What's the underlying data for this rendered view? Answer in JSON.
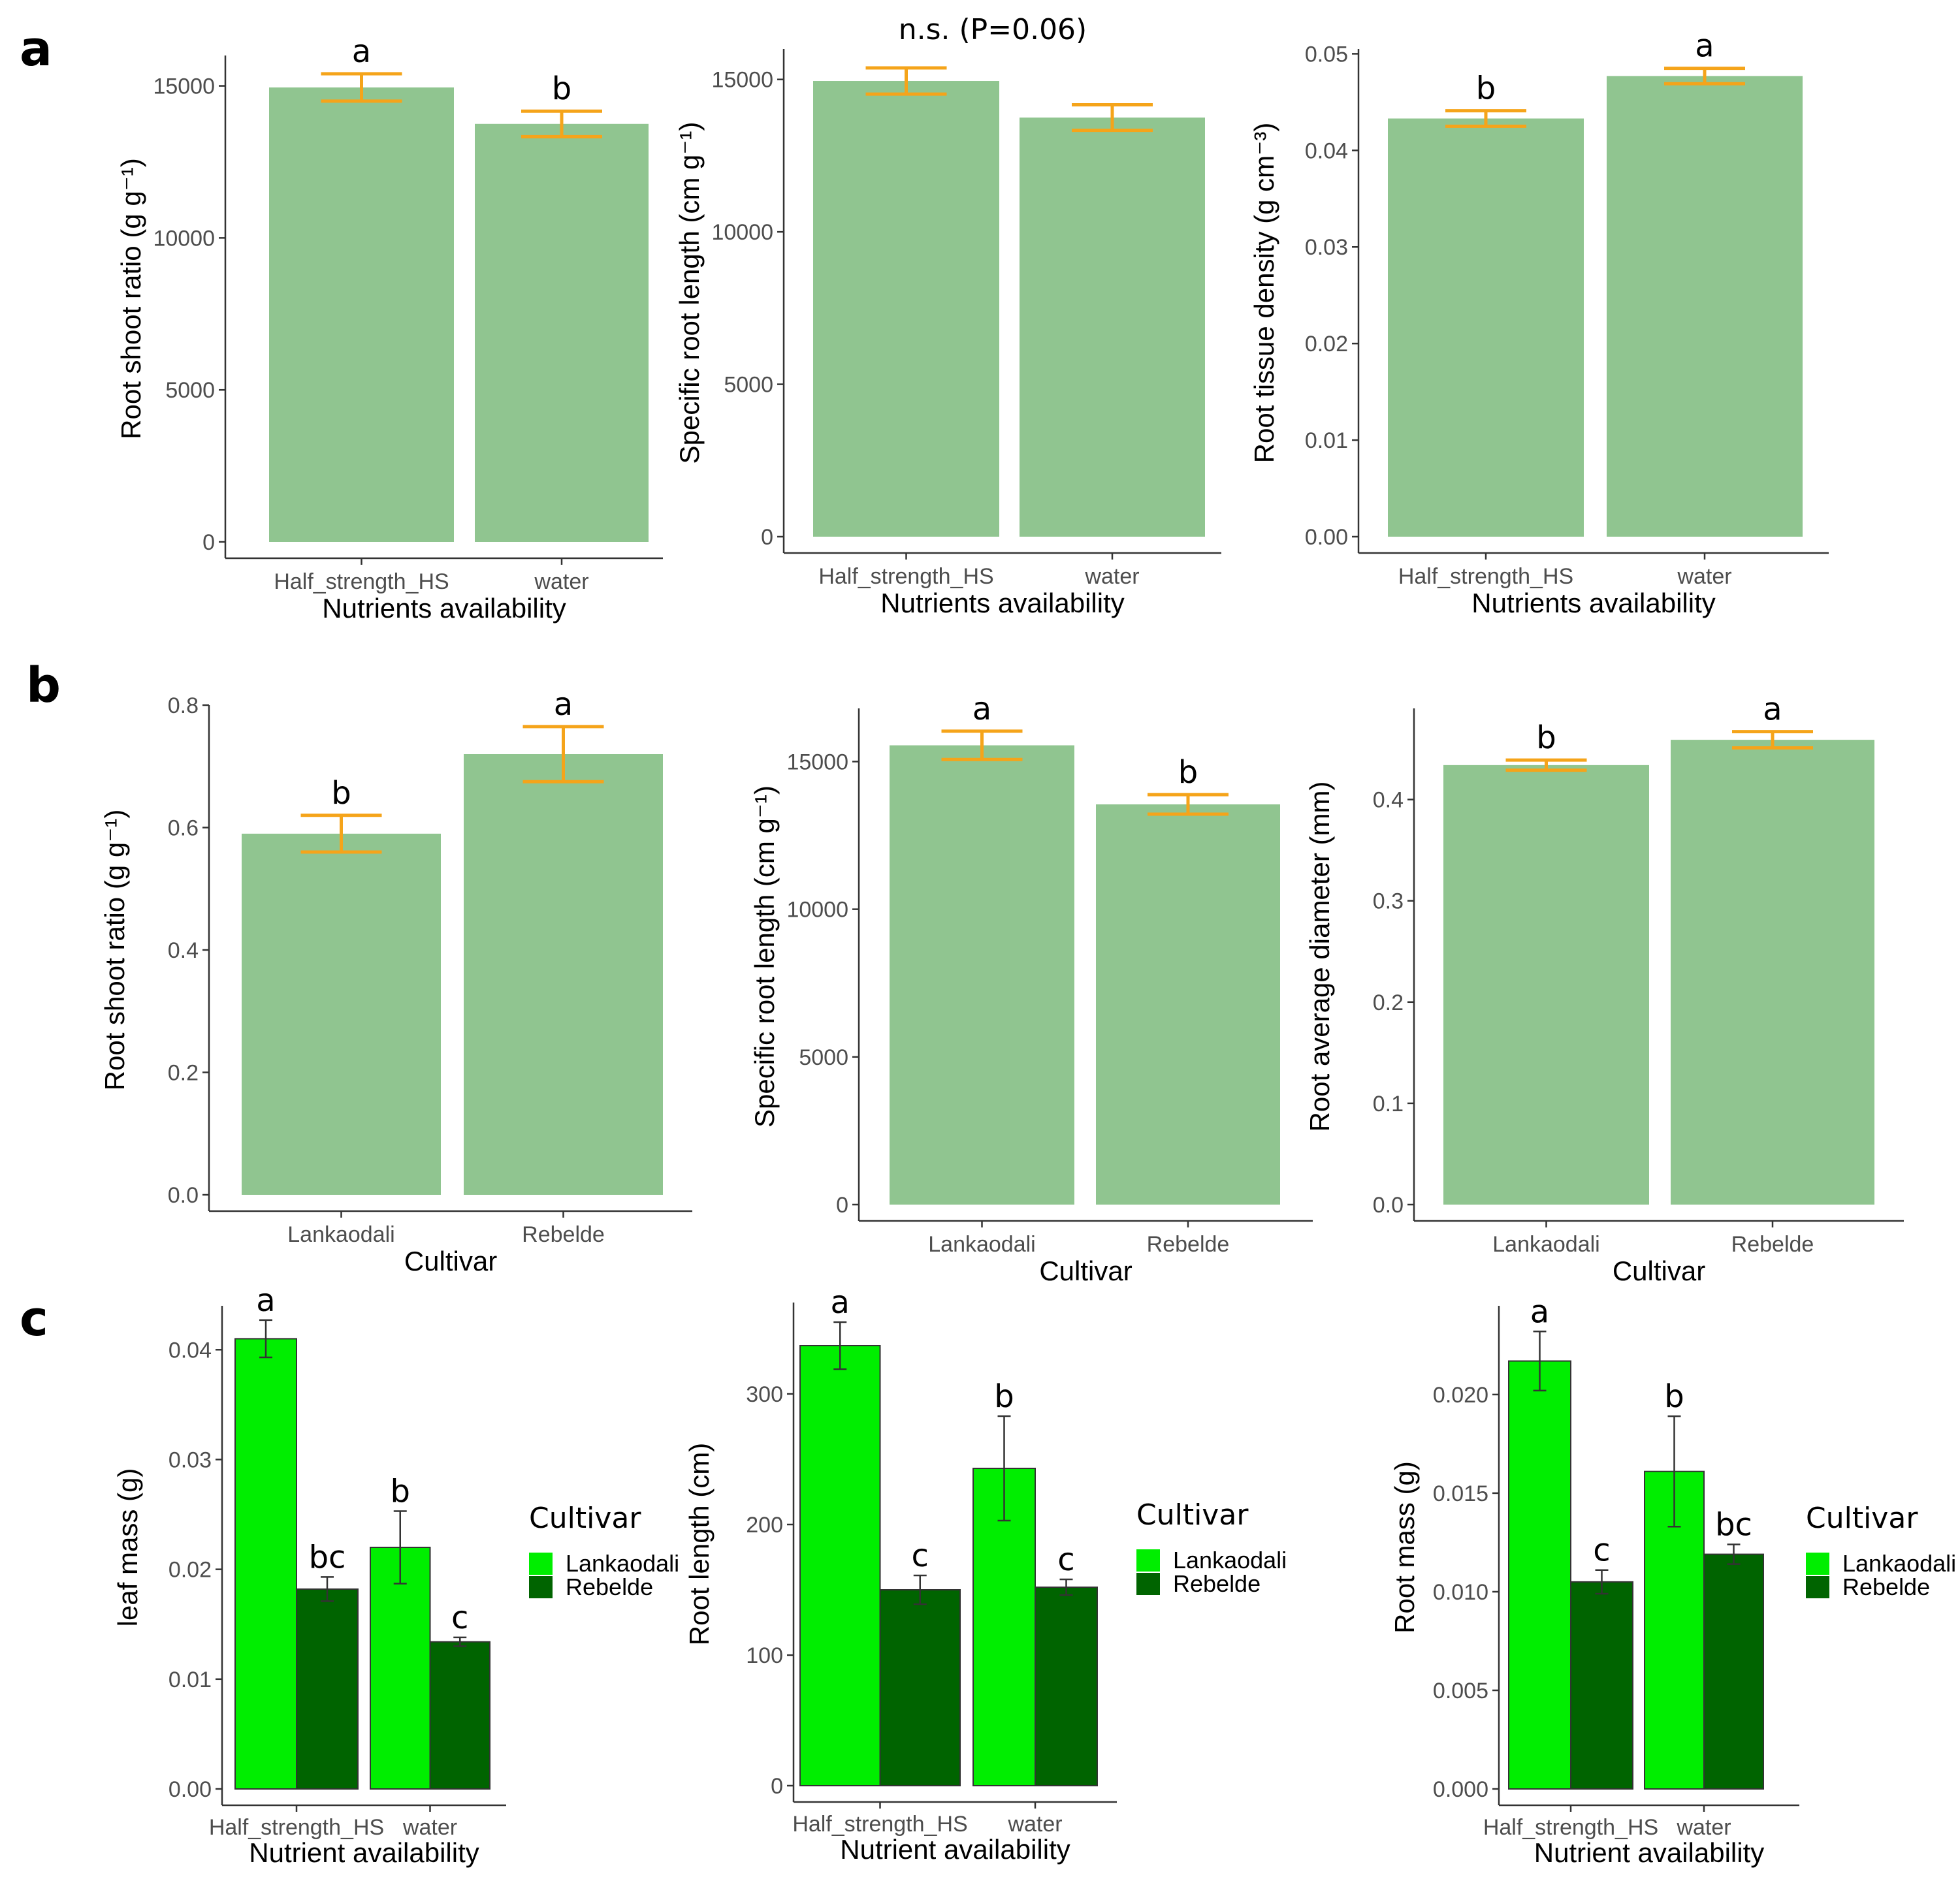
{
  "panel_letters": [
    "a",
    "b",
    "c"
  ],
  "chart_data": [
    {
      "id": "a1",
      "type": "bar",
      "categories": [
        "Half_strength_HS",
        "water"
      ],
      "values": [
        14950,
        13750
      ],
      "errors": [
        450,
        420
      ],
      "letters": [
        "a",
        "b"
      ],
      "ylabel": "Root shoot ratio (g g⁻¹)",
      "xlabel": "Nutrients availability",
      "ylim": [
        0,
        16000
      ],
      "yticks": [
        0,
        5000,
        10000,
        15000
      ],
      "tick_labels": [
        "0",
        "5000",
        "10000",
        "15000"
      ],
      "bar_color": "#90c590",
      "error_color": "#f5a41a"
    },
    {
      "id": "a2",
      "type": "bar",
      "categories": [
        "Half_strength_HS",
        "water"
      ],
      "values": [
        14950,
        13750
      ],
      "errors": [
        430,
        420
      ],
      "letters": [
        "",
        ""
      ],
      "note": "n.s.  (P=0.06)",
      "ylabel": "Specific root length (cm g⁻¹)",
      "xlabel": "Nutrients availability",
      "ylim": [
        0,
        16000
      ],
      "yticks": [
        0,
        5000,
        10000,
        15000
      ],
      "tick_labels": [
        "0",
        "5000",
        "10000",
        "15000"
      ],
      "bar_color": "#90c590",
      "error_color": "#f5a41a"
    },
    {
      "id": "a3",
      "type": "bar",
      "categories": [
        "Half_strength_HS",
        "water"
      ],
      "values": [
        0.0433,
        0.0477
      ],
      "errors": [
        0.0008,
        0.0008
      ],
      "letters": [
        "b",
        "a"
      ],
      "ylabel": "Root tissue density (g cm⁻³)",
      "xlabel": "Nutrients availability",
      "ylim": [
        0,
        0.0505
      ],
      "yticks": [
        0,
        0.01,
        0.02,
        0.03,
        0.04,
        0.05
      ],
      "tick_labels": [
        "0.00",
        "0.01",
        "0.02",
        "0.03",
        "0.04",
        "0.05"
      ],
      "bar_color": "#90c590",
      "error_color": "#f5a41a"
    },
    {
      "id": "b1",
      "type": "bar",
      "categories": [
        "Lankaodali",
        "Rebelde"
      ],
      "values": [
        0.59,
        0.72
      ],
      "errors": [
        0.03,
        0.045
      ],
      "letters": [
        "b",
        "a"
      ],
      "ylabel": "Root shoot ratio (g g⁻¹)",
      "xlabel": "Cultivar",
      "ylim": [
        0,
        0.8
      ],
      "yticks": [
        0,
        0.2,
        0.4,
        0.6,
        0.8
      ],
      "tick_labels": [
        "0.0",
        "0.2",
        "0.4",
        "0.6",
        "0.8"
      ],
      "bar_color": "#90c590",
      "error_color": "#f5a41a"
    },
    {
      "id": "b2",
      "type": "bar",
      "categories": [
        "Lankaodali",
        "Rebelde"
      ],
      "values": [
        15550,
        13550
      ],
      "errors": [
        480,
        330
      ],
      "letters": [
        "a",
        "b"
      ],
      "ylabel": "Specific root length (cm g⁻¹)",
      "xlabel": "Cultivar",
      "ylim": [
        0,
        16800
      ],
      "yticks": [
        0,
        5000,
        10000,
        15000
      ],
      "tick_labels": [
        "0",
        "5000",
        "10000",
        "15000"
      ],
      "bar_color": "#90c590",
      "error_color": "#f5a41a"
    },
    {
      "id": "b3",
      "type": "bar",
      "categories": [
        "Lankaodali",
        "Rebelde"
      ],
      "values": [
        0.434,
        0.459
      ],
      "errors": [
        0.005,
        0.008
      ],
      "letters": [
        "b",
        "a"
      ],
      "ylabel": "Root average diameter (mm)",
      "xlabel": "Cultivar",
      "ylim": [
        0,
        0.49
      ],
      "yticks": [
        0,
        0.1,
        0.2,
        0.3,
        0.4
      ],
      "tick_labels": [
        "0.0",
        "0.1",
        "0.2",
        "0.3",
        "0.4"
      ],
      "bar_color": "#90c590",
      "error_color": "#f5a41a"
    },
    {
      "id": "c1",
      "type": "grouped_bar",
      "categories": [
        "Half_strength_HS",
        "water"
      ],
      "series": [
        {
          "name": "Lankaodali",
          "values": [
            0.041,
            0.022
          ],
          "errors": [
            0.0017,
            0.0033
          ],
          "letters": [
            "a",
            "b"
          ],
          "color": "#00ee00"
        },
        {
          "name": "Rebelde",
          "values": [
            0.0182,
            0.0134
          ],
          "errors": [
            0.0011,
            0.0004
          ],
          "letters": [
            "bc",
            "c"
          ],
          "color": "#006400"
        }
      ],
      "ylabel": "leaf mass (g)",
      "xlabel": "Nutrient availability",
      "ylim": [
        0,
        0.044
      ],
      "yticks": [
        0,
        0.01,
        0.02,
        0.03,
        0.04
      ],
      "tick_labels": [
        "0.00",
        "0.01",
        "0.02",
        "0.03",
        "0.04"
      ],
      "legend_title": "Cultivar"
    },
    {
      "id": "c2",
      "type": "grouped_bar",
      "categories": [
        "Half_strength_HS",
        "water"
      ],
      "series": [
        {
          "name": "Lankaodali",
          "values": [
            337,
            243
          ],
          "errors": [
            18,
            40
          ],
          "letters": [
            "a",
            "b"
          ],
          "color": "#00ee00"
        },
        {
          "name": "Rebelde",
          "values": [
            150,
            152
          ],
          "errors": [
            11,
            6
          ],
          "letters": [
            "c",
            "c"
          ],
          "color": "#006400"
        }
      ],
      "ylabel": "Root length (cm)",
      "xlabel": "Nutrient availability",
      "ylim": [
        0,
        370
      ],
      "yticks": [
        0,
        100,
        200,
        300
      ],
      "tick_labels": [
        "0",
        "100",
        "200",
        "300"
      ],
      "legend_title": "Cultivar"
    },
    {
      "id": "c3",
      "type": "grouped_bar",
      "categories": [
        "Half_strength_HS",
        "water"
      ],
      "series": [
        {
          "name": "Lankaodali",
          "values": [
            0.0217,
            0.0161
          ],
          "errors": [
            0.0015,
            0.0028
          ],
          "letters": [
            "a",
            "b"
          ],
          "color": "#00ee00"
        },
        {
          "name": "Rebelde",
          "values": [
            0.0105,
            0.0119
          ],
          "errors": [
            0.0006,
            0.0005
          ],
          "letters": [
            "c",
            "bc"
          ],
          "color": "#006400"
        }
      ],
      "ylabel": "Root mass (g)",
      "xlabel": "Nutrient availability",
      "ylim": [
        0,
        0.0245
      ],
      "yticks": [
        0,
        0.005,
        0.01,
        0.015,
        0.02
      ],
      "tick_labels": [
        "0.000",
        "0.005",
        "0.010",
        "0.015",
        "0.020"
      ],
      "legend_title": "Cultivar"
    }
  ]
}
